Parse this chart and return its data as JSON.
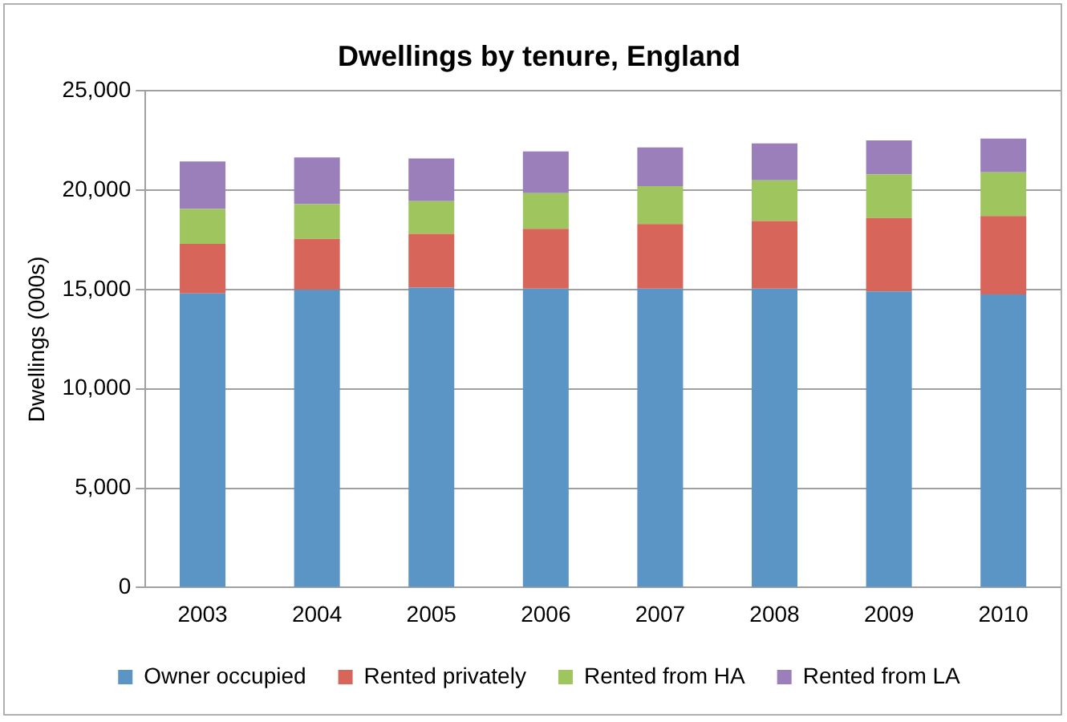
{
  "chart_data": {
    "type": "bar",
    "title": "Dwellings by tenure, England",
    "ylabel": "Dwellings (000s)",
    "categories": [
      "2003",
      "2004",
      "2005",
      "2006",
      "2007",
      "2008",
      "2009",
      "2010"
    ],
    "stacked": true,
    "ylim": [
      0,
      25000
    ],
    "yticks": [
      {
        "value": 0,
        "label": "0"
      },
      {
        "value": 5000,
        "label": "5,000"
      },
      {
        "value": 10000,
        "label": "10,000"
      },
      {
        "value": 15000,
        "label": "15,000"
      },
      {
        "value": 20000,
        "label": "20,000"
      },
      {
        "value": 25000,
        "label": "25,000"
      }
    ],
    "grid": "y",
    "legend": "bottom",
    "series": [
      {
        "name": "Owner occupied",
        "color": "#5b95c6",
        "values": [
          14800,
          15000,
          15100,
          15050,
          15050,
          15050,
          14900,
          14750
        ]
      },
      {
        "name": "Rented privately",
        "color": "#d8655a",
        "values": [
          2500,
          2550,
          2700,
          3000,
          3250,
          3400,
          3700,
          3950
        ]
      },
      {
        "name": "Rented from HA",
        "color": "#9fc65e",
        "values": [
          1750,
          1750,
          1650,
          1800,
          1900,
          2050,
          2200,
          2200
        ]
      },
      {
        "name": "Rented from LA",
        "color": "#9a7fbb",
        "values": [
          2400,
          2350,
          2150,
          2100,
          1950,
          1850,
          1700,
          1700
        ]
      }
    ]
  }
}
